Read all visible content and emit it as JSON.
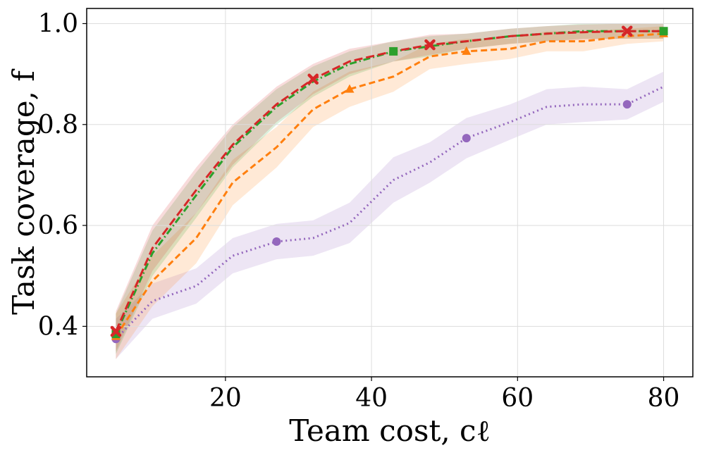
{
  "chart_data": {
    "type": "line",
    "title": "",
    "xlabel": "Team cost, cℓ",
    "ylabel": "Task coverage, f",
    "xlim": [
      1,
      84
    ],
    "ylim": [
      0.3,
      1.03
    ],
    "xticks": [
      20,
      40,
      60,
      80
    ],
    "xtick_labels": [
      "20",
      "40",
      "60",
      "80"
    ],
    "yticks": [
      0.4,
      0.6,
      0.8,
      1.0
    ],
    "ytick_labels": [
      "0.4",
      "0.6",
      "0.8",
      "1.0"
    ],
    "grid": true,
    "x": [
      5,
      10,
      16,
      21,
      27,
      32,
      37,
      43,
      48,
      53,
      59,
      64,
      69,
      75,
      80
    ],
    "series": [
      {
        "name": "purple-dotted",
        "color": "#9467bd",
        "dash": "dotted",
        "marker": "circle",
        "marker_indices": [
          0,
          4,
          9,
          13
        ],
        "values": [
          0.375,
          0.45,
          0.48,
          0.54,
          0.568,
          0.575,
          0.605,
          0.69,
          0.725,
          0.773,
          0.805,
          0.835,
          0.84,
          0.84,
          0.875
        ],
        "band": [
          0.04,
          0.035,
          0.035,
          0.035,
          0.035,
          0.035,
          0.04,
          0.045,
          0.04,
          0.04,
          0.035,
          0.035,
          0.035,
          0.03,
          0.03
        ]
      },
      {
        "name": "orange-dashed",
        "color": "#ff7f0e",
        "dash": "dashed",
        "marker": "triangle",
        "marker_indices": [
          0,
          6,
          9,
          14
        ],
        "values": [
          0.38,
          0.49,
          0.575,
          0.685,
          0.755,
          0.83,
          0.87,
          0.895,
          0.935,
          0.945,
          0.95,
          0.965,
          0.965,
          0.975,
          0.98
        ],
        "band": [
          0.045,
          0.05,
          0.05,
          0.045,
          0.04,
          0.035,
          0.035,
          0.03,
          0.025,
          0.025,
          0.02,
          0.02,
          0.02,
          0.015,
          0.015
        ]
      },
      {
        "name": "green-dashdot",
        "color": "#2ca02c",
        "dash": "dashdot",
        "marker": "square",
        "marker_indices": [
          0,
          7,
          14
        ],
        "values": [
          0.385,
          0.545,
          0.66,
          0.755,
          0.835,
          0.885,
          0.92,
          0.945,
          0.955,
          0.965,
          0.975,
          0.98,
          0.985,
          0.985,
          0.985
        ],
        "band": [
          0.04,
          0.045,
          0.045,
          0.04,
          0.035,
          0.03,
          0.025,
          0.02,
          0.02,
          0.015,
          0.015,
          0.015,
          0.015,
          0.015,
          0.015
        ]
      },
      {
        "name": "red-dashed",
        "color": "#d62728",
        "dash": "longdash",
        "marker": "x",
        "marker_indices": [
          0,
          5,
          8,
          13
        ],
        "values": [
          0.39,
          0.555,
          0.67,
          0.76,
          0.84,
          0.89,
          0.925,
          0.945,
          0.958,
          0.965,
          0.975,
          0.98,
          0.983,
          0.985,
          0.985
        ],
        "band": [
          0.04,
          0.045,
          0.045,
          0.04,
          0.035,
          0.03,
          0.025,
          0.02,
          0.02,
          0.015,
          0.015,
          0.015,
          0.015,
          0.015,
          0.015
        ]
      }
    ]
  }
}
